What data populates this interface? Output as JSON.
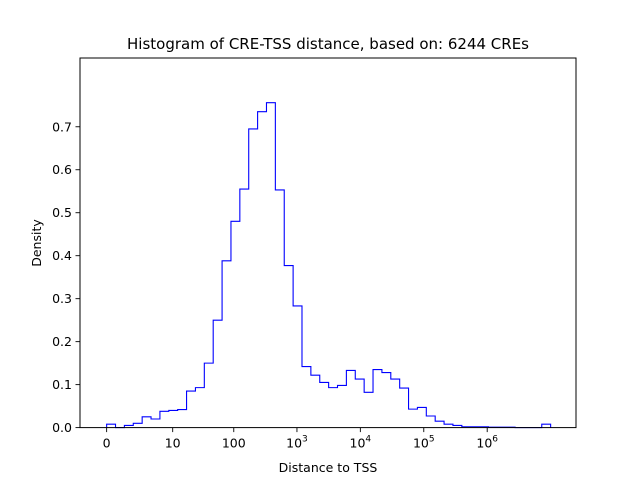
{
  "chart_data": {
    "type": "histogram",
    "title": "Histogram of CRE-TSS distance, based on: 6244 CREs",
    "xlabel": "Distance to TSS",
    "ylabel": "Density",
    "x_scale": "symlog-like (log10(1+x)), ticks at 0, 10, 100, 10^3 .. 10^6",
    "x_ticks": [
      {
        "value": 0,
        "label": "0"
      },
      {
        "value": 10,
        "label": "10"
      },
      {
        "value": 100,
        "label": "100"
      },
      {
        "value": 1000,
        "base": "10",
        "exp": "3"
      },
      {
        "value": 10000,
        "base": "10",
        "exp": "4"
      },
      {
        "value": 100000,
        "base": "10",
        "exp": "5"
      },
      {
        "value": 1000000,
        "base": "10",
        "exp": "6"
      }
    ],
    "y_ticks": [
      "0.0",
      "0.1",
      "0.2",
      "0.3",
      "0.4",
      "0.5",
      "0.6",
      "0.7"
    ],
    "ylim": [
      0,
      0.86
    ],
    "xlim_log10": [
      -0.42,
      7.4
    ],
    "grid": false,
    "legend": "none",
    "line_color": "#0000ff",
    "bin_edges_log10": [
      0.0,
      0.14,
      0.28,
      0.42,
      0.56,
      0.7,
      0.84,
      0.98,
      1.12,
      1.26,
      1.4,
      1.54,
      1.68,
      1.82,
      1.96,
      2.1,
      2.24,
      2.38,
      2.52,
      2.66,
      2.8,
      2.94,
      3.08,
      3.22,
      3.36,
      3.5,
      3.64,
      3.78,
      3.92,
      4.06,
      4.2,
      4.34,
      4.48,
      4.62,
      4.76,
      4.9,
      5.04,
      5.18,
      5.32,
      5.46,
      5.6,
      5.74,
      5.88,
      6.02,
      6.16,
      6.3,
      6.44,
      6.58,
      6.72,
      6.86,
      7.0
    ],
    "density": [
      0.008,
      0.0,
      0.005,
      0.01,
      0.025,
      0.02,
      0.038,
      0.04,
      0.042,
      0.085,
      0.093,
      0.15,
      0.25,
      0.388,
      0.48,
      0.555,
      0.695,
      0.735,
      0.756,
      0.553,
      0.377,
      0.283,
      0.142,
      0.122,
      0.105,
      0.093,
      0.098,
      0.133,
      0.113,
      0.082,
      0.135,
      0.128,
      0.113,
      0.092,
      0.043,
      0.047,
      0.027,
      0.015,
      0.008,
      0.005,
      0.002,
      0.002,
      0.002,
      0.001,
      0.001,
      0.001,
      0.0,
      0.0,
      0.0,
      0.008
    ]
  }
}
